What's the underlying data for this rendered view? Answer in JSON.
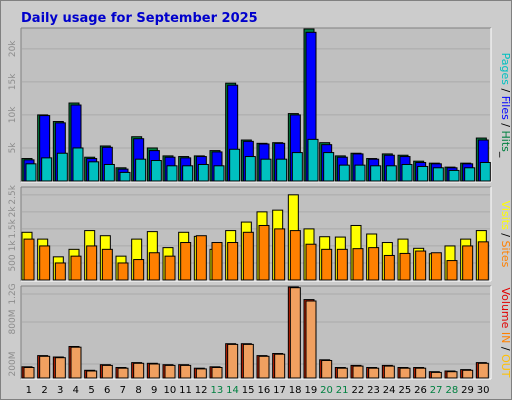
{
  "chart_data": {
    "type": "bar",
    "title": "Daily usage for September 2025",
    "categories": [
      "1",
      "2",
      "3",
      "4",
      "5",
      "6",
      "7",
      "8",
      "9",
      "10",
      "11",
      "12",
      "13",
      "14",
      "15",
      "16",
      "17",
      "18",
      "19",
      "20",
      "21",
      "22",
      "23",
      "24",
      "25",
      "26",
      "27",
      "28",
      "29",
      "30"
    ],
    "weekend_days": [
      "13",
      "14",
      "20",
      "21",
      "27",
      "28"
    ],
    "panels": [
      {
        "id": "pages-files-hits",
        "ylim": [
          0,
          23000
        ],
        "tick_labels": [
          "5k",
          "10k",
          "15k",
          "20k"
        ],
        "tick_values": [
          5000,
          10000,
          15000,
          20000
        ],
        "axis_legend": [
          {
            "text": "Pages",
            "color": "#00c0c0"
          },
          {
            "text": " / ",
            "color": "#000000"
          },
          {
            "text": "Files",
            "color": "#0000ff"
          },
          {
            "text": " / ",
            "color": "#000000"
          },
          {
            "text": "Hits",
            "color": "#008040"
          },
          {
            "text": "_",
            "color": "#000000"
          }
        ],
        "series": [
          {
            "name": "Hits",
            "color": "#008040",
            "values": [
              3400,
              10000,
              9000,
              11800,
              3600,
              5300,
              2000,
              6700,
              5000,
              3800,
              3700,
              3800,
              4600,
              14800,
              6200,
              5700,
              5800,
              10200,
              23000,
              5800,
              3800,
              4200,
              3400,
              4100,
              3900,
              3000,
              2700,
              2100,
              2700,
              6500
            ]
          },
          {
            "name": "Files",
            "color": "#0000ff",
            "values": [
              3200,
              9900,
              8800,
              11500,
              3400,
              5100,
              1800,
              6400,
              4600,
              3600,
              3500,
              3700,
              4400,
              14500,
              6000,
              5600,
              5700,
              10000,
              22500,
              5500,
              3600,
              4100,
              3300,
              3900,
              3700,
              2800,
              2600,
              2000,
              2600,
              6200
            ]
          },
          {
            "name": "Pages",
            "color": "#00c0c0",
            "values": [
              2600,
              3500,
              4200,
              5000,
              2900,
              2500,
              1300,
              3300,
              3100,
              2300,
              2300,
              2500,
              2300,
              4800,
              3700,
              3300,
              3300,
              4300,
              6300,
              4300,
              2400,
              2400,
              2300,
              2300,
              2500,
              2200,
              2000,
              1600,
              2000,
              2800
            ]
          }
        ]
      },
      {
        "id": "visits-sites",
        "ylim": [
          0,
          2700
        ],
        "tick_labels": [
          "500",
          "1k",
          "1.5k",
          "2k",
          "2.5k"
        ],
        "tick_values": [
          500,
          1000,
          1500,
          2000,
          2500
        ],
        "axis_legend": [
          {
            "text": "Visits",
            "color": "#ffff00"
          },
          {
            "text": " / ",
            "color": "#000000"
          },
          {
            "text": "Sites",
            "color": "#ff8000"
          }
        ],
        "series": [
          {
            "name": "Visits",
            "color": "#ffff00",
            "values": [
              1400,
              1200,
              680,
              900,
              1450,
              1300,
              700,
              1200,
              1420,
              950,
              1400,
              1280,
              900,
              1450,
              1700,
              2000,
              2050,
              2500,
              1500,
              1270,
              1260,
              1600,
              1350,
              1100,
              1200,
              930,
              770,
              1000,
              1200,
              1450
            ]
          },
          {
            "name": "Sites",
            "color": "#ff8000",
            "values": [
              1200,
              1000,
              500,
              700,
              1000,
              900,
              500,
              600,
              800,
              700,
              1100,
              1300,
              1100,
              1100,
              1400,
              1600,
              1500,
              1450,
              1050,
              900,
              900,
              920,
              950,
              720,
              780,
              850,
              800,
              570,
              1000,
              1120
            ]
          }
        ]
      },
      {
        "id": "volume-in-out",
        "ylim": [
          0,
          1300
        ],
        "tick_labels": [
          "200M",
          "800M",
          "1.2G"
        ],
        "tick_values": [
          200,
          800,
          1200
        ],
        "axis_legend": [
          {
            "text": "Volume",
            "color": "#e00000"
          },
          {
            "text": "  ",
            "color": "#000000"
          },
          {
            "text": "IN",
            "color": "#ff8000"
          },
          {
            "text": " / ",
            "color": "#000000"
          },
          {
            "text": "OUT",
            "color": "#ffc000"
          }
        ],
        "series": [
          {
            "name": "Volume",
            "color": "#c82000",
            "values": [
              160,
              320,
              300,
              450,
              110,
              190,
              150,
              220,
              210,
              190,
              190,
              140,
              160,
              490,
              490,
              320,
              350,
              1300,
              1120,
              260,
              150,
              180,
              150,
              180,
              150,
              150,
              90,
              100,
              120,
              220
            ]
          },
          {
            "name": "IN",
            "color": "#f0a060",
            "values": [
              150,
              310,
              290,
              440,
              100,
              180,
              140,
              210,
              200,
              180,
              180,
              130,
              150,
              480,
              480,
              310,
              340,
              1290,
              1100,
              250,
              140,
              170,
              140,
              170,
              140,
              140,
              80,
              90,
              110,
              210
            ]
          }
        ]
      }
    ]
  }
}
